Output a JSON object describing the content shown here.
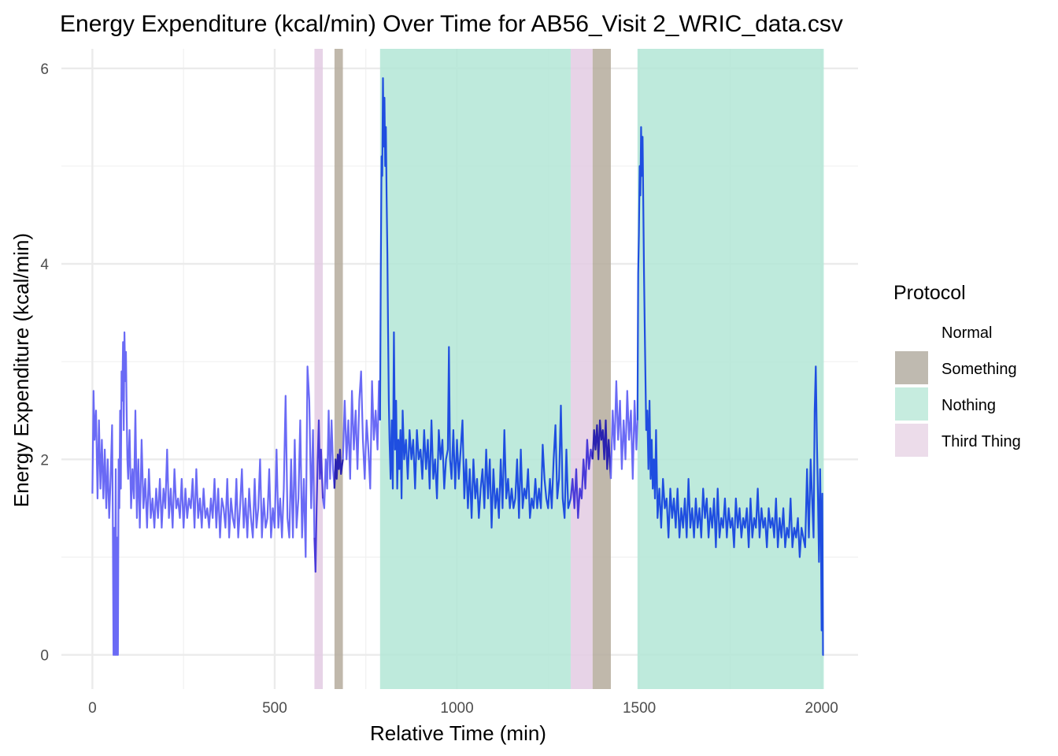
{
  "chart_data": {
    "type": "line",
    "title": "Energy Expenditure (kcal/min) Over Time for AB56_Visit 2_WRIC_data.csv",
    "xlabel": "Relative Time (min)",
    "ylabel": "Energy Expenditure (kcal/min)",
    "xlim": [
      -85,
      2100
    ],
    "ylim": [
      -0.35,
      6.2
    ],
    "x_ticks": [
      0,
      500,
      1000,
      1500,
      2000
    ],
    "x_tick_labels": [
      "0",
      "500",
      "1000",
      "1500",
      "2000"
    ],
    "y_ticks": [
      0,
      2,
      4,
      6
    ],
    "y_tick_labels": [
      "0",
      "2",
      "4",
      "6"
    ],
    "grid": true,
    "legend": {
      "title": "Protocol",
      "position": "right",
      "entries": [
        {
          "label": "Normal",
          "color": "#ffffff"
        },
        {
          "label": "Something",
          "color": "#bfbab0"
        },
        {
          "label": "Nothing",
          "color": "#c6ecdf"
        },
        {
          "label": "Third Thing",
          "color": "#ecdcea"
        }
      ]
    },
    "bands": [
      {
        "protocol": "Third Thing",
        "x_start": 609,
        "x_end": 632,
        "color": "#e3cbe3"
      },
      {
        "protocol": "Something",
        "x_start": 664,
        "x_end": 687,
        "color": "#b5ab9c"
      },
      {
        "protocol": "Nothing",
        "x_start": 789,
        "x_end": 1312,
        "color": "#b3e6d6"
      },
      {
        "protocol": "Third Thing",
        "x_start": 1312,
        "x_end": 1372,
        "color": "#e3cbe3"
      },
      {
        "protocol": "Something",
        "x_start": 1372,
        "x_end": 1422,
        "color": "#b5ab9c"
      },
      {
        "protocol": "Nothing",
        "x_start": 1495,
        "x_end": 2006,
        "color": "#b3e6d6"
      }
    ],
    "series": [
      {
        "color": "#6a6af5",
        "x": [
          0,
          3,
          6,
          10,
          14,
          18,
          22,
          26,
          30,
          34,
          38,
          42,
          46,
          50,
          54,
          56,
          58,
          60,
          62,
          64,
          66,
          68,
          70,
          72,
          74,
          76,
          78,
          80,
          82,
          84,
          86,
          88,
          90,
          92,
          94,
          96,
          98,
          102,
          106,
          110,
          114,
          118,
          122,
          126,
          130,
          135,
          140,
          145,
          150,
          155,
          160,
          165,
          170,
          175,
          180,
          185,
          190,
          195,
          200,
          205,
          210,
          215,
          220,
          225,
          230,
          235,
          240,
          245,
          250,
          255,
          260,
          265,
          270,
          275,
          280,
          285,
          290,
          295,
          300,
          305,
          310,
          315,
          320,
          325,
          330,
          335,
          340,
          345,
          350,
          355,
          360,
          365,
          370,
          375,
          380,
          385,
          390,
          395,
          400,
          405,
          410,
          415,
          420,
          425,
          430,
          435,
          440,
          445,
          450,
          455,
          460,
          465,
          470,
          475,
          480,
          485,
          490,
          495,
          500,
          505,
          510,
          515,
          520,
          525,
          530,
          535,
          540,
          545,
          550,
          555,
          560,
          565,
          570,
          575,
          580,
          585,
          590,
          595,
          600,
          605,
          609
        ],
        "y": [
          1.65,
          2.7,
          2.2,
          2.5,
          1.6,
          2.4,
          1.7,
          2.2,
          1.6,
          2.1,
          1.5,
          2.0,
          1.4,
          1.8,
          2.35,
          1.4,
          0.0,
          1.3,
          0.0,
          1.9,
          0.0,
          1.2,
          0.0,
          2.0,
          1.5,
          2.5,
          1.7,
          2.9,
          2.6,
          3.2,
          2.3,
          3.3,
          2.8,
          3.1,
          2.5,
          2.0,
          1.8,
          2.3,
          1.5,
          1.9,
          1.6,
          2.5,
          1.4,
          2.0,
          1.3,
          2.2,
          1.5,
          1.8,
          1.3,
          1.9,
          1.4,
          1.6,
          1.3,
          1.7,
          1.4,
          1.8,
          1.3,
          1.7,
          1.5,
          2.1,
          1.4,
          1.7,
          1.3,
          1.9,
          1.5,
          1.6,
          1.4,
          1.8,
          1.3,
          1.7,
          1.4,
          1.6,
          1.5,
          1.8,
          1.3,
          1.9,
          1.4,
          1.6,
          1.3,
          1.7,
          1.4,
          1.5,
          1.3,
          1.6,
          1.4,
          1.8,
          1.3,
          1.7,
          1.2,
          1.6,
          1.5,
          1.3,
          1.8,
          1.2,
          1.6,
          1.4,
          1.3,
          1.8,
          1.2,
          1.5,
          1.9,
          1.3,
          1.6,
          1.2,
          1.7,
          1.4,
          1.2,
          1.8,
          1.3,
          1.5,
          2.0,
          1.2,
          1.6,
          1.3,
          1.4,
          1.9,
          1.2,
          1.5,
          1.3,
          2.1,
          1.3,
          1.6,
          1.2,
          1.7,
          2.65,
          1.4,
          1.2,
          2.0,
          1.2,
          2.2,
          1.3,
          1.6,
          2.4,
          1.2,
          1.8,
          1.0,
          2.95,
          2.6,
          1.5,
          2.3,
          1.2
        ]
      },
      {
        "color": "#4a3ad8",
        "x": [
          609,
          612,
          615,
          618,
          621,
          624,
          627,
          632
        ],
        "y": [
          1.2,
          0.85,
          1.5,
          2.0,
          2.4,
          1.8,
          2.1,
          1.6
        ]
      },
      {
        "color": "#6a6af5",
        "x": [
          632,
          636,
          640,
          644,
          648,
          652,
          656,
          660,
          664
        ],
        "y": [
          1.6,
          1.5,
          2.0,
          1.7,
          2.5,
          1.8,
          2.4,
          1.9,
          1.7
        ]
      },
      {
        "color": "#2a22b0",
        "x": [
          664,
          667,
          670,
          673,
          676,
          679,
          682,
          687
        ],
        "y": [
          1.7,
          2.0,
          1.8,
          2.05,
          1.9,
          2.1,
          1.85,
          2.0
        ]
      },
      {
        "color": "#6a6af5",
        "x": [
          687,
          692,
          697,
          702,
          707,
          712,
          717,
          722,
          727,
          732,
          737,
          742,
          747,
          752,
          757,
          762,
          767,
          772,
          777,
          782,
          786,
          789
        ],
        "y": [
          2.0,
          2.6,
          2.0,
          2.4,
          1.8,
          2.7,
          2.1,
          2.5,
          1.9,
          2.6,
          2.9,
          2.2,
          1.8,
          2.4,
          2.1,
          1.7,
          2.8,
          2.2,
          2.5,
          2.1,
          2.8,
          2.4
        ]
      },
      {
        "color": "#1f4ee0",
        "x": [
          789,
          791,
          793,
          795,
          797,
          799,
          801,
          803,
          805,
          807,
          809,
          811,
          813,
          815,
          818,
          821,
          824,
          827,
          830,
          833,
          836,
          839,
          842,
          845,
          848,
          851,
          855,
          860,
          865,
          870,
          875,
          880,
          885,
          890,
          895,
          900,
          905,
          910,
          915,
          920,
          925,
          930,
          935,
          940,
          945,
          950,
          955,
          960,
          965,
          970,
          975,
          978,
          981,
          985,
          990,
          995,
          1000,
          1005,
          1010,
          1015,
          1020,
          1025,
          1030,
          1035,
          1040,
          1045,
          1050,
          1055,
          1060,
          1065,
          1070,
          1075,
          1080,
          1085,
          1090,
          1095,
          1100,
          1105,
          1110,
          1115,
          1120,
          1125,
          1130,
          1135,
          1140,
          1145,
          1150,
          1155,
          1160,
          1165,
          1170,
          1175,
          1180,
          1185,
          1190,
          1195,
          1200,
          1205,
          1210,
          1215,
          1220,
          1225,
          1230,
          1235,
          1240,
          1245,
          1250,
          1255,
          1260,
          1265,
          1270,
          1275,
          1280,
          1285,
          1290,
          1295,
          1300,
          1305,
          1312
        ],
        "y": [
          2.4,
          3.9,
          5.1,
          4.9,
          5.9,
          5.2,
          5.7,
          5.0,
          5.4,
          4.7,
          4.1,
          3.3,
          2.6,
          2.2,
          1.8,
          2.4,
          1.7,
          3.3,
          2.1,
          2.6,
          1.7,
          2.2,
          1.9,
          2.3,
          1.6,
          2.5,
          2.0,
          2.2,
          1.8,
          2.3,
          2.0,
          2.2,
          1.7,
          2.3,
          2.0,
          2.1,
          1.8,
          2.3,
          1.9,
          2.2,
          1.7,
          2.4,
          1.8,
          2.0,
          1.6,
          2.3,
          2.0,
          2.2,
          1.7,
          2.0,
          2.1,
          3.15,
          2.0,
          1.8,
          2.3,
          1.7,
          2.2,
          1.8,
          2.1,
          2.4,
          1.6,
          2.0,
          1.5,
          1.9,
          1.4,
          2.0,
          1.6,
          1.8,
          1.4,
          1.7,
          1.9,
          1.5,
          2.1,
          1.6,
          2.0,
          1.3,
          1.9,
          1.5,
          1.7,
          1.4,
          2.0,
          1.5,
          2.3,
          1.6,
          1.8,
          1.5,
          1.7,
          1.5,
          1.6,
          2.0,
          1.4,
          2.1,
          1.5,
          1.7,
          1.6,
          1.9,
          1.4,
          1.6,
          1.5,
          1.8,
          1.5,
          1.7,
          1.5,
          2.15,
          1.8,
          1.6,
          1.5,
          1.8,
          1.5,
          2.0,
          2.35,
          1.6,
          1.8,
          2.55,
          1.6,
          1.4,
          2.1,
          1.5,
          1.6
        ]
      },
      {
        "color": "#4a3ad8",
        "x": [
          1312,
          1317,
          1322,
          1327,
          1332,
          1337,
          1342,
          1347,
          1352,
          1357,
          1362,
          1367,
          1372
        ],
        "y": [
          1.6,
          1.8,
          1.5,
          1.9,
          1.4,
          1.7,
          1.6,
          2.0,
          1.7,
          2.2,
          1.9,
          2.1,
          2.0
        ]
      },
      {
        "color": "#2a22b0",
        "x": [
          1372,
          1376,
          1380,
          1384,
          1388,
          1392,
          1396,
          1400,
          1404,
          1408,
          1412,
          1416,
          1422
        ],
        "y": [
          2.0,
          2.3,
          2.1,
          2.35,
          2.0,
          2.4,
          2.2,
          2.3,
          2.0,
          2.4,
          1.9,
          2.2,
          1.8
        ]
      },
      {
        "color": "#6a6af5",
        "x": [
          1422,
          1427,
          1432,
          1437,
          1442,
          1447,
          1452,
          1457,
          1462,
          1467,
          1472,
          1477,
          1482,
          1487,
          1492,
          1495
        ],
        "y": [
          1.8,
          2.5,
          2.1,
          2.8,
          2.2,
          2.6,
          1.9,
          2.4,
          2.0,
          2.7,
          2.2,
          2.5,
          1.8,
          2.6,
          2.1,
          2.4
        ]
      },
      {
        "color": "#1f4ee0",
        "x": [
          1495,
          1497,
          1499,
          1501,
          1503,
          1505,
          1507,
          1509,
          1511,
          1513,
          1515,
          1517,
          1519,
          1522,
          1525,
          1528,
          1531,
          1534,
          1537,
          1540,
          1543,
          1546,
          1550,
          1555,
          1560,
          1565,
          1570,
          1575,
          1580,
          1585,
          1590,
          1595,
          1600,
          1605,
          1610,
          1615,
          1620,
          1625,
          1630,
          1635,
          1640,
          1645,
          1650,
          1655,
          1660,
          1665,
          1670,
          1675,
          1680,
          1685,
          1690,
          1695,
          1700,
          1705,
          1710,
          1715,
          1720,
          1725,
          1730,
          1735,
          1740,
          1745,
          1750,
          1755,
          1760,
          1765,
          1770,
          1775,
          1780,
          1785,
          1790,
          1795,
          1800,
          1805,
          1810,
          1815,
          1820,
          1825,
          1830,
          1835,
          1840,
          1845,
          1850,
          1855,
          1860,
          1865,
          1870,
          1875,
          1880,
          1885,
          1890,
          1895,
          1900,
          1905,
          1910,
          1915,
          1920,
          1925,
          1930,
          1935,
          1940,
          1945,
          1950,
          1955,
          1960,
          1965,
          1970,
          1975,
          1978,
          1981,
          1984,
          1987,
          1990,
          1993,
          1996,
          1998,
          2000,
          2002,
          2004,
          2006
        ],
        "y": [
          2.4,
          3.9,
          4.3,
          5.0,
          4.7,
          5.4,
          4.9,
          5.3,
          4.6,
          3.9,
          3.3,
          2.8,
          2.3,
          2.5,
          1.9,
          2.6,
          1.8,
          2.2,
          1.7,
          2.0,
          1.6,
          2.3,
          1.4,
          1.7,
          1.3,
          1.8,
          1.5,
          1.6,
          1.2,
          1.7,
          1.4,
          1.6,
          1.3,
          1.7,
          1.2,
          1.5,
          1.3,
          1.6,
          1.2,
          1.8,
          1.3,
          1.5,
          1.2,
          1.6,
          1.3,
          1.5,
          1.2,
          1.7,
          1.4,
          1.6,
          1.2,
          1.5,
          1.3,
          1.6,
          1.1,
          1.7,
          1.2,
          1.4,
          1.3,
          1.6,
          1.2,
          1.5,
          1.3,
          1.4,
          1.1,
          1.6,
          1.3,
          1.5,
          1.2,
          1.4,
          1.3,
          1.5,
          1.1,
          1.6,
          1.2,
          1.4,
          1.3,
          1.7,
          1.2,
          1.5,
          1.3,
          1.4,
          1.1,
          1.5,
          1.3,
          1.4,
          1.2,
          1.6,
          1.1,
          1.4,
          1.2,
          1.5,
          1.1,
          1.3,
          1.2,
          1.6,
          1.1,
          1.3,
          1.2,
          1.4,
          1.0,
          1.3,
          1.2,
          1.1,
          1.9,
          1.2,
          2.0,
          1.5,
          1.2,
          2.5,
          2.95,
          2.2,
          1.6,
          0.95,
          1.9,
          1.3,
          0.25,
          1.65,
          0.0,
          0.0
        ]
      }
    ]
  }
}
